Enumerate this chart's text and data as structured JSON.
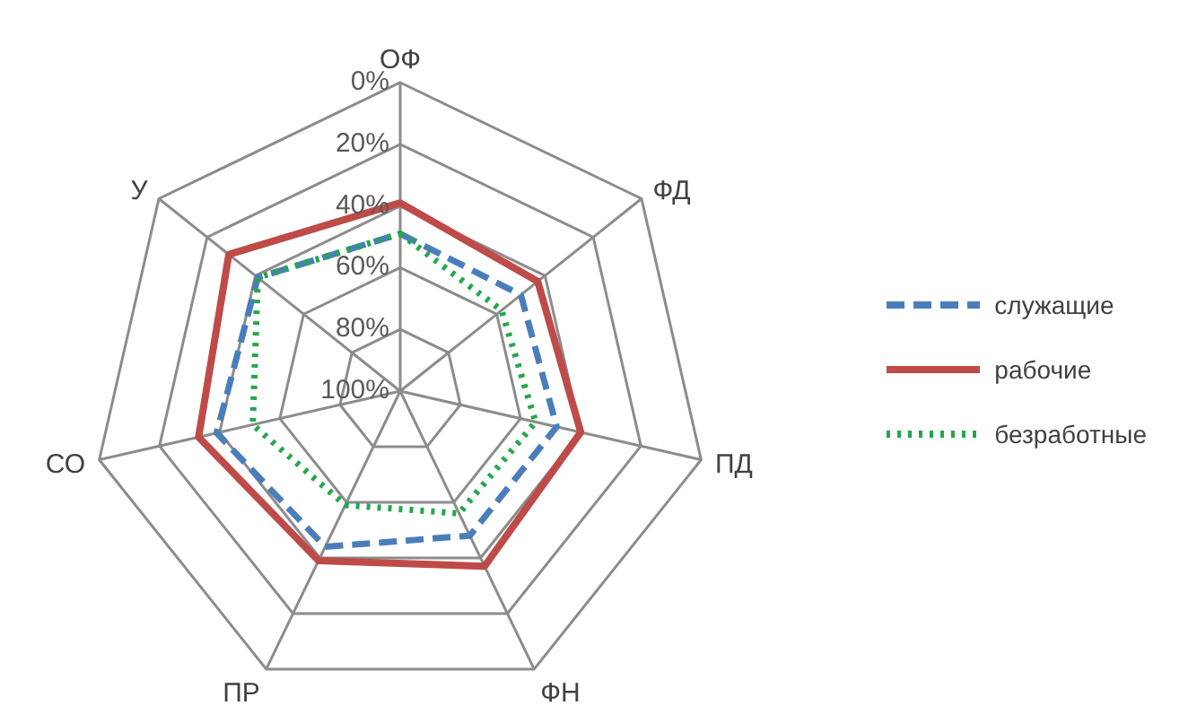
{
  "chart_data": {
    "type": "radar",
    "categories": [
      "ОФ",
      "ФД",
      "ПД",
      "ФН",
      "ПР",
      "СО",
      "У"
    ],
    "series": [
      {
        "name": "служащие",
        "color": "#4a7ebb",
        "line_style": "dashed",
        "values": [
          49,
          50,
          48,
          48,
          44,
          39,
          41
        ]
      },
      {
        "name": "рабочие",
        "color": "#be4b48",
        "line_style": "solid",
        "values": [
          39,
          43,
          40,
          37,
          39,
          33,
          29
        ]
      },
      {
        "name": "безработные",
        "color": "#22a84a",
        "line_style": "dotted",
        "values": [
          49,
          58,
          55,
          56,
          59,
          51,
          41
        ]
      }
    ],
    "ylim": [
      100,
      0
    ],
    "yticks": [
      {
        "value": 0,
        "label": "0%"
      },
      {
        "value": 20,
        "label": "20%"
      },
      {
        "value": 40,
        "label": "40%"
      },
      {
        "value": 60,
        "label": "60%"
      },
      {
        "value": 80,
        "label": "80%"
      },
      {
        "value": 100,
        "label": "100%"
      }
    ],
    "grid": true,
    "legend": "right",
    "marker": "none"
  }
}
